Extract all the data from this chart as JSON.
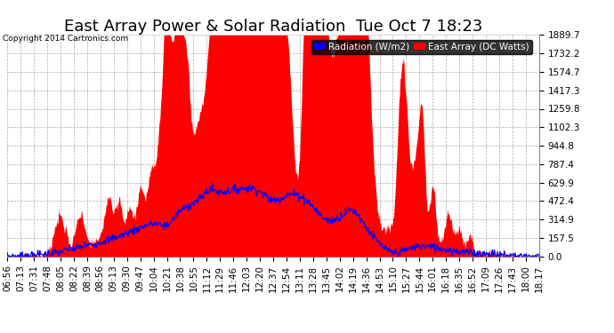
{
  "title": "East Array Power & Solar Radiation  Tue Oct 7 18:23",
  "copyright": "Copyright 2014 Cartronics.com",
  "legend_radiation": "Radiation (W/m2)",
  "legend_east_array": "East Array (DC Watts)",
  "ylabel_values": [
    0.0,
    157.5,
    314.9,
    472.4,
    629.9,
    787.4,
    944.8,
    1102.3,
    1259.8,
    1417.3,
    1574.7,
    1732.2,
    1889.7
  ],
  "ymax": 1889.7,
  "background_color": "#ffffff",
  "plot_bg_color": "#ffffff",
  "grid_color": "#aaaaaa",
  "radiation_color": "#0000ff",
  "east_array_color": "#ff0000",
  "title_fontsize": 13,
  "tick_fontsize": 7.5,
  "xtick_labels": [
    "06:56",
    "07:13",
    "07:31",
    "07:48",
    "08:05",
    "08:22",
    "08:39",
    "08:56",
    "09:13",
    "09:30",
    "09:47",
    "10:04",
    "10:21",
    "10:38",
    "10:55",
    "11:12",
    "11:29",
    "11:46",
    "12:03",
    "12:20",
    "12:37",
    "12:54",
    "13:11",
    "13:28",
    "13:45",
    "14:02",
    "14:19",
    "14:36",
    "14:53",
    "15:10",
    "15:27",
    "15:44",
    "16:01",
    "16:18",
    "16:35",
    "16:52",
    "17:09",
    "17:26",
    "17:43",
    "18:00",
    "18:17"
  ]
}
